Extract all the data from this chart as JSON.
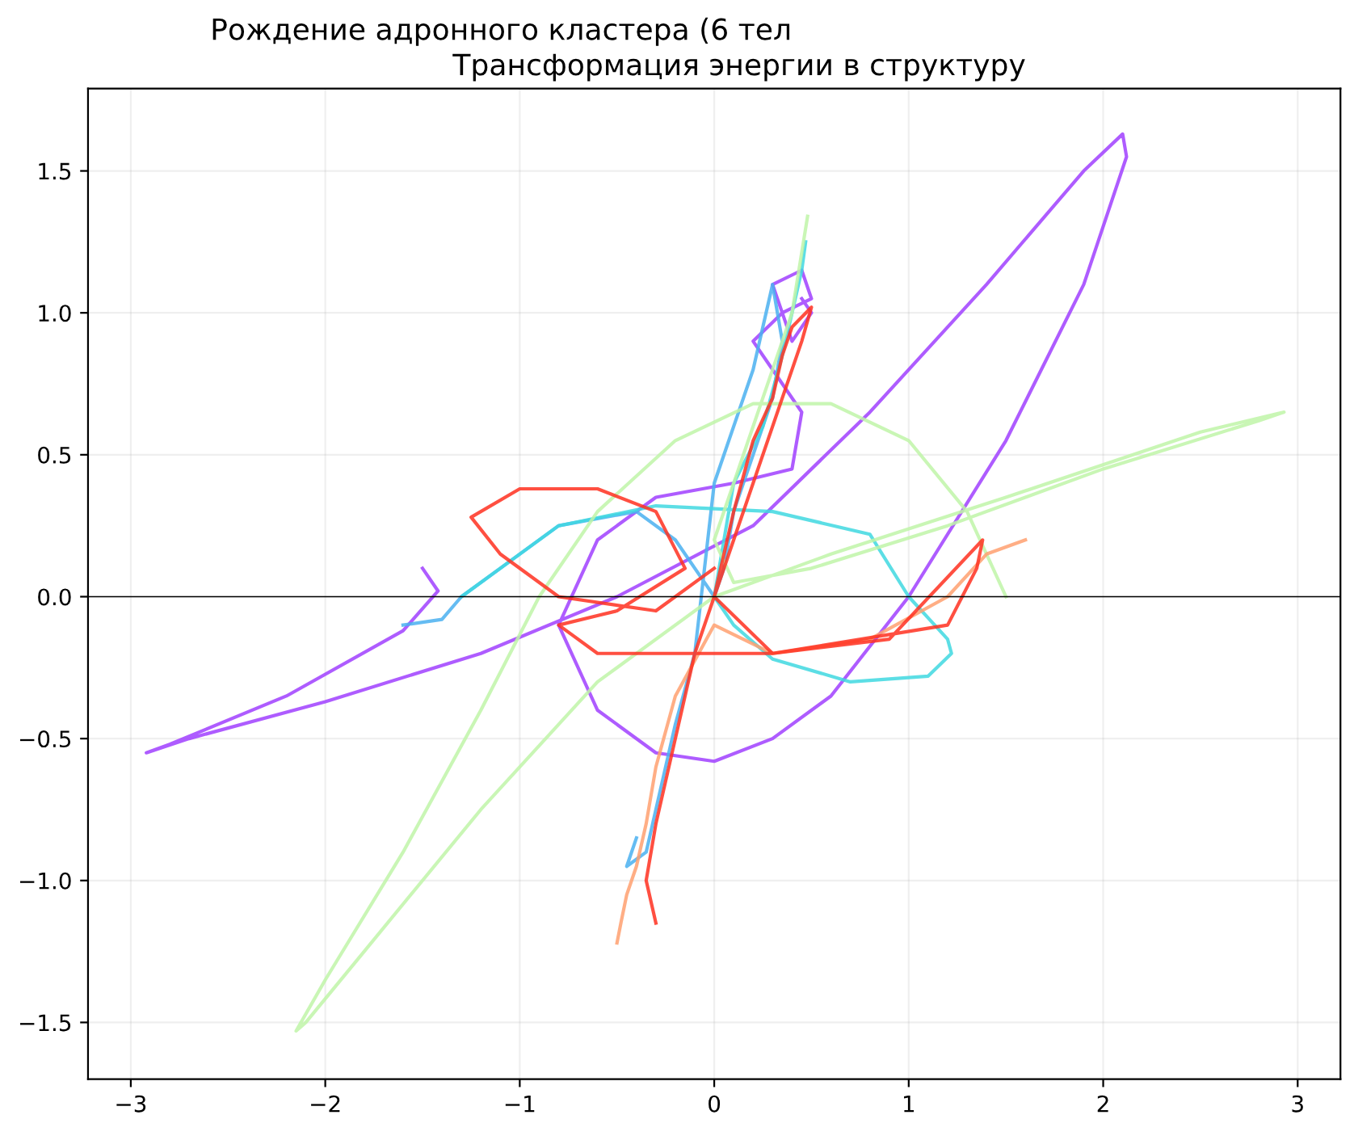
{
  "chart_data": {
    "type": "line",
    "title": "Рождение адронного кластера (6 тел",
    "subtitle": "Трансформация энергии в структуру",
    "xlim": [
      -3.22,
      3.22
    ],
    "ylim": [
      -1.7,
      1.79
    ],
    "xticks": [
      {
        "value": -3,
        "label": "−3"
      },
      {
        "value": -2,
        "label": "−2"
      },
      {
        "value": -1,
        "label": "−1"
      },
      0,
      1,
      2,
      3
    ],
    "yticks": [
      {
        "value": -1.5,
        "label": "−1.5"
      },
      {
        "value": -1,
        "label": "−1.0"
      },
      {
        "value": -0.5,
        "label": "−0.5"
      },
      {
        "value": 0,
        "label": "0.0"
      },
      {
        "value": 0.5,
        "label": "0.5"
      },
      {
        "value": 1,
        "label": "1.0"
      },
      {
        "value": 1.5,
        "label": "1.5"
      }
    ],
    "grid": true,
    "marker": "none",
    "line_style": "solid",
    "ref_lines": [
      {
        "axis": "y",
        "value": 0,
        "color": "#000000"
      }
    ],
    "series": [
      {
        "color": "#a040ff",
        "x": [
          -1.5,
          -1.42,
          -1.6,
          -2.2,
          -2.8,
          -2.92,
          -2.7,
          -2.0,
          -1.2,
          -0.5,
          0.2,
          0.8,
          1.4,
          1.9,
          2.1,
          2.12,
          1.9,
          1.5,
          1.0,
          0.6,
          0.3,
          0.0,
          -0.3,
          -0.6,
          -0.8,
          -0.6,
          -0.3,
          0.1,
          0.4,
          0.45,
          0.3,
          0.2,
          0.35,
          0.5,
          0.45,
          0.3,
          0.4,
          0.5,
          0.45
        ],
        "values": [
          0.1,
          0.02,
          -0.12,
          -0.35,
          -0.52,
          -0.55,
          -0.5,
          -0.37,
          -0.2,
          0.0,
          0.25,
          0.65,
          1.1,
          1.5,
          1.63,
          1.55,
          1.1,
          0.55,
          0.0,
          -0.35,
          -0.5,
          -0.58,
          -0.55,
          -0.4,
          -0.1,
          0.2,
          0.35,
          0.4,
          0.45,
          0.65,
          0.8,
          0.9,
          1.0,
          1.05,
          1.15,
          1.1,
          0.9,
          1.0,
          1.05
        ]
      },
      {
        "color": "#4ab0f0",
        "x": [
          -1.6,
          -1.4,
          -1.3,
          -1.1,
          -0.8,
          -0.4,
          -0.2,
          -0.05,
          0.0,
          0.05,
          0.1,
          0.2,
          0.3,
          0.35,
          0.3,
          0.2,
          0.0,
          -0.1,
          -0.2,
          -0.25,
          -0.3,
          -0.35,
          -0.45,
          -0.4
        ],
        "values": [
          -0.1,
          -0.08,
          0.0,
          0.1,
          0.25,
          0.3,
          0.2,
          0.05,
          0.0,
          0.1,
          0.3,
          0.5,
          0.7,
          0.9,
          1.1,
          0.8,
          0.4,
          -0.2,
          -0.45,
          -0.6,
          -0.75,
          -0.9,
          -0.95,
          -0.85
        ]
      },
      {
        "color": "#40d8e0",
        "x": [
          -1.3,
          -1.1,
          -0.8,
          -0.3,
          0.3,
          0.8,
          1.0,
          1.2,
          1.22,
          1.1,
          0.7,
          0.3,
          0.1,
          0.0,
          0.05,
          0.1,
          0.25,
          0.35,
          0.4,
          0.45,
          0.47
        ],
        "values": [
          0.0,
          0.1,
          0.25,
          0.32,
          0.3,
          0.22,
          0.0,
          -0.15,
          -0.2,
          -0.28,
          -0.3,
          -0.22,
          -0.1,
          0.0,
          0.2,
          0.4,
          0.6,
          0.85,
          1.0,
          1.15,
          1.25
        ]
      },
      {
        "color": "#c0f5a8",
        "x": [
          1.5,
          1.3,
          1.0,
          0.6,
          0.2,
          -0.2,
          -0.6,
          -0.9,
          -1.2,
          -1.6,
          -2.0,
          -2.15,
          -2.1,
          -1.8,
          -1.2,
          -0.6,
          0.0,
          0.6,
          1.5,
          2.5,
          2.93,
          2.8,
          2.0,
          1.2,
          0.5,
          0.1,
          0.0,
          0.2,
          0.4,
          0.48
        ],
        "values": [
          0.0,
          0.3,
          0.55,
          0.68,
          0.68,
          0.55,
          0.3,
          0.0,
          -0.4,
          -0.9,
          -1.35,
          -1.53,
          -1.5,
          -1.25,
          -0.75,
          -0.3,
          0.0,
          0.15,
          0.35,
          0.58,
          0.65,
          0.62,
          0.45,
          0.25,
          0.1,
          0.05,
          0.2,
          0.6,
          1.0,
          1.34
        ]
      },
      {
        "color": "#ffa070",
        "x": [
          1.6,
          1.4,
          1.2,
          0.8,
          0.3,
          0.0,
          -0.2,
          -0.3,
          -0.35,
          -0.4,
          -0.45,
          -0.48,
          -0.5
        ],
        "values": [
          0.2,
          0.15,
          0.0,
          -0.15,
          -0.2,
          -0.1,
          -0.35,
          -0.6,
          -0.8,
          -0.95,
          -1.05,
          -1.15,
          -1.22
        ]
      },
      {
        "color": "#ff3020",
        "x": [
          0.0,
          -0.3,
          -0.8,
          -1.1,
          -1.25,
          -1.0,
          -0.6,
          -0.3,
          -0.15,
          -0.5,
          -0.8,
          -0.6,
          0.3,
          1.2,
          1.35,
          1.38,
          0.9,
          0.3,
          0.0,
          0.1,
          0.2,
          0.3,
          0.35,
          0.4,
          0.5,
          0.45,
          0.1,
          -0.1,
          -0.2,
          -0.3,
          -0.35,
          -0.3
        ],
        "values": [
          0.1,
          -0.05,
          0.0,
          0.15,
          0.28,
          0.38,
          0.38,
          0.3,
          0.1,
          -0.05,
          -0.1,
          -0.2,
          -0.2,
          -0.1,
          0.1,
          0.2,
          -0.15,
          -0.2,
          0.0,
          0.3,
          0.55,
          0.7,
          0.85,
          0.95,
          1.02,
          0.9,
          0.2,
          -0.2,
          -0.5,
          -0.8,
          -1.0,
          -1.15
        ]
      }
    ]
  }
}
